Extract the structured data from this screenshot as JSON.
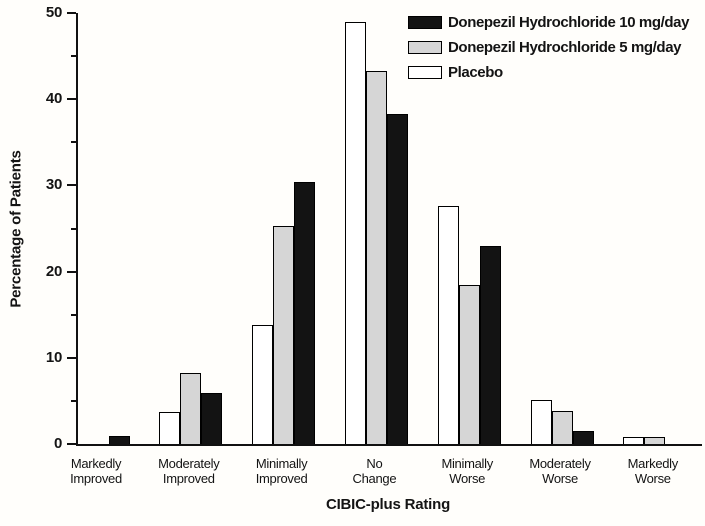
{
  "chart_data": {
    "type": "bar",
    "title": "",
    "xlabel": "CIBIC-plus Rating",
    "ylabel": "Percentage of Patients",
    "ylim": [
      0,
      50
    ],
    "y_major_ticks": [
      0,
      10,
      20,
      30,
      40,
      50
    ],
    "y_minor_ticks": [
      5,
      15,
      25,
      35,
      45
    ],
    "grid": false,
    "legend_position": "top-right",
    "categories": [
      "Markedly\nImproved",
      "Moderately\nImproved",
      "Minimally\nImproved",
      "No\nChange",
      "Minimally\nWorse",
      "Moderately\nWorse",
      "Markedly\nWorse"
    ],
    "series": [
      {
        "name": "Donepezil Hydrochloride 10 mg/day",
        "key": "donepezil-10mg",
        "fill": "#131313",
        "border": "#000000",
        "values": [
          0.9,
          5.9,
          30.4,
          38.3,
          23.0,
          1.5,
          0
        ]
      },
      {
        "name": "Donepezil Hydrochloride 5 mg/day",
        "key": "donepezil-5mg",
        "fill": "#d6d6d6",
        "border": "#000000",
        "values": [
          0,
          8.2,
          25.3,
          43.3,
          18.5,
          3.8,
          0.8
        ]
      },
      {
        "name": "Placebo",
        "key": "placebo",
        "fill": "#ffffff",
        "border": "#000000",
        "values": [
          0,
          3.7,
          13.8,
          49.0,
          27.6,
          5.1,
          0.8
        ]
      }
    ]
  },
  "colors": {
    "axis": "#111111",
    "text": "#141414",
    "background": "#fffefb"
  }
}
